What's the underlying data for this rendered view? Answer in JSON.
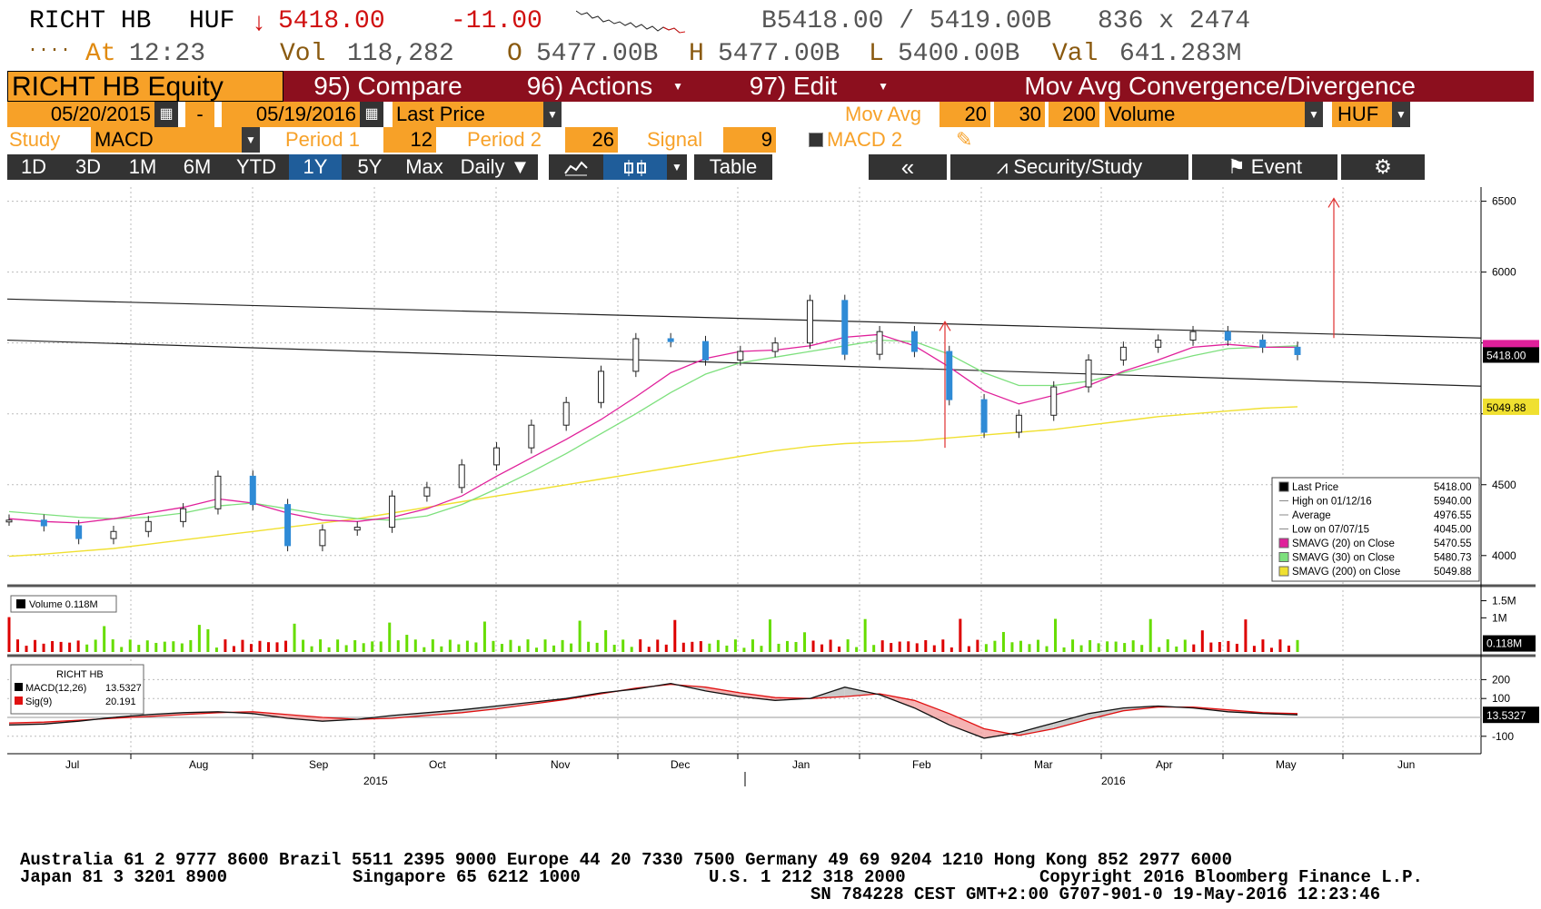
{
  "quote": {
    "ticker": "RICHT HB",
    "currency": "HUF",
    "arrow": "↓",
    "last": "5418.00",
    "change": "-11.00",
    "bid_ask": "B5418.00 / 5419.00B",
    "size": "836 x 2474",
    "dots": "....",
    "time_label": "At",
    "time": "12:23",
    "vol_label": "Vol",
    "vol": "118,282",
    "open_label": "O",
    "open": "5477.00B",
    "high_label": "H",
    "high": "5477.00B",
    "low_label": "L",
    "low": "5400.00B",
    "val_label": "Val",
    "val": "641.283M"
  },
  "menu": {
    "security": "RICHT HB Equity",
    "compare": "95) Compare",
    "actions": "96) Actions",
    "edit": "97) Edit",
    "title": "Mov Avg Convergence/Divergence"
  },
  "params": {
    "start_date": "05/20/2015",
    "dash": "-",
    "end_date": "05/19/2016",
    "field": "Last Price",
    "mov_avg_label": "Mov Avg",
    "ma1": "20",
    "ma2": "30",
    "ma3": "200",
    "lower": "Volume",
    "ccy": "HUF",
    "study_label": "Study",
    "study": "MACD",
    "period1_label": "Period 1",
    "period1": "12",
    "period2_label": "Period 2",
    "period2": "26",
    "signal_label": "Signal",
    "signal": "9",
    "macd2": "MACD 2"
  },
  "toolbar": {
    "ranges": [
      "1D",
      "3D",
      "1M",
      "6M",
      "YTD",
      "1Y",
      "5Y",
      "Max"
    ],
    "active_range": "1Y",
    "frequency": "Daily",
    "table": "Table",
    "back": "«",
    "security_study": "Security/Study",
    "event": "Event"
  },
  "colors": {
    "orange": "#f7a128",
    "maroon": "#8c0f1e",
    "up": "#ffffff",
    "down": "#2f8bd6",
    "sma20": "#e0209a",
    "sma30": "#7de07d",
    "sma200": "#f0e030",
    "vol_up": "#66dd00",
    "vol_down": "#dd0000",
    "annot": "#e03030"
  },
  "price_panel": {
    "y_ticks": [
      "6500",
      "6000",
      "4500",
      "4000"
    ],
    "last_tag": "5418.00",
    "sma_tag": "5470.55",
    "sma200_tag": "5049.88",
    "legend": [
      {
        "label": "Last Price",
        "value": "5418.00",
        "swatch": "#000000"
      },
      {
        "label": "High on 01/12/16",
        "value": "5940.00",
        "swatch": "none"
      },
      {
        "label": "Average",
        "value": "4976.55",
        "swatch": "none"
      },
      {
        "label": "Low on 07/07/15",
        "value": "4045.00",
        "swatch": "none"
      },
      {
        "label": "SMAVG (20) on Close",
        "value": "5470.55",
        "swatch": "#e0209a"
      },
      {
        "label": "SMAVG (30) on Close",
        "value": "5480.73",
        "swatch": "#7de07d"
      },
      {
        "label": "SMAVG (200) on Close",
        "value": "5049.88",
        "swatch": "#f0e030"
      }
    ]
  },
  "volume_panel": {
    "legend": "Volume 0.118M",
    "y_ticks": [
      "1.5M",
      "1M"
    ],
    "tag": "0.118M"
  },
  "macd_panel": {
    "title": "RICHT HB",
    "macd_label": "MACD(12,26)",
    "macd_value": "13.5327",
    "sig_label": "Sig(9)",
    "sig_value": "20.191",
    "y_ticks": [
      "200",
      "100",
      "-100"
    ],
    "tag": "13.5327"
  },
  "x_axis": {
    "months": [
      "Jul",
      "Aug",
      "Sep",
      "Oct",
      "Nov",
      "Dec",
      "Jan",
      "Feb",
      "Mar",
      "Apr",
      "May",
      "Jun"
    ],
    "year_left": "2015",
    "year_right": "2016"
  },
  "footer": {
    "line1": "Australia 61 2 9777 8600 Brazil 5511 2395 9000 Europe 44 20 7330 7500 Germany 49 69 9204 1210 Hong Kong 852 2977 6000",
    "line2a": "Japan 81 3 3201 8900",
    "line2b": "Singapore 65 6212 1000",
    "line2c": "U.S. 1 212 318 2000",
    "line2d": "Copyright 2016 Bloomberg Finance L.P.",
    "line3": "SN 784228 CEST GMT+2:00 G707-901-0 19-May-2016 12:23:46"
  },
  "chart_data": {
    "type": "line",
    "title": "RICHT HB",
    "x_labels": [
      "Jul",
      "Aug",
      "Sep",
      "Oct",
      "Nov",
      "Dec",
      "Jan",
      "Feb",
      "Mar",
      "Apr",
      "May",
      "Jun"
    ],
    "series": [
      {
        "name": "Last Price",
        "values": [
          4250,
          4210,
          4120,
          4170,
          4240,
          4330,
          4560,
          4360,
          4070,
          4180,
          4200,
          4420,
          4480,
          4640,
          4760,
          4920,
          5080,
          5300,
          5530,
          5510,
          5380,
          5440,
          5500,
          5800,
          5420,
          5580,
          5440,
          5100,
          4870,
          4990,
          5190,
          5380,
          5470,
          5520,
          5580,
          5520,
          5470,
          5418
        ]
      },
      {
        "name": "SMAVG (20) on Close",
        "values": [
          4260,
          4240,
          4230,
          4260,
          4300,
          4340,
          4400,
          4370,
          4300,
          4250,
          4240,
          4270,
          4330,
          4420,
          4560,
          4690,
          4820,
          4960,
          5120,
          5290,
          5390,
          5440,
          5450,
          5480,
          5540,
          5560,
          5480,
          5330,
          5160,
          5070,
          5130,
          5200,
          5300,
          5380,
          5470,
          5490,
          5470,
          5470
        ]
      },
      {
        "name": "SMAVG (30) on Close",
        "values": [
          4310,
          4290,
          4270,
          4260,
          4270,
          4300,
          4350,
          4370,
          4330,
          4290,
          4260,
          4250,
          4280,
          4360,
          4470,
          4590,
          4720,
          4860,
          5000,
          5150,
          5280,
          5360,
          5400,
          5440,
          5480,
          5520,
          5510,
          5420,
          5290,
          5200,
          5200,
          5230,
          5290,
          5350,
          5410,
          5460,
          5470,
          5480
        ]
      },
      {
        "name": "SMAVG (200) on Close",
        "values": [
          3995,
          4010,
          4030,
          4050,
          4080,
          4110,
          4140,
          4170,
          4200,
          4230,
          4260,
          4300,
          4340,
          4380,
          4420,
          4460,
          4500,
          4540,
          4580,
          4620,
          4660,
          4700,
          4740,
          4770,
          4790,
          4800,
          4810,
          4830,
          4850,
          4870,
          4890,
          4920,
          4950,
          4980,
          5000,
          5020,
          5040,
          5050
        ]
      },
      {
        "name": "MACD(12,26)",
        "values": [
          -40,
          -35,
          -20,
          0,
          15,
          25,
          30,
          20,
          -5,
          -20,
          -10,
          10,
          25,
          40,
          60,
          80,
          100,
          130,
          150,
          180,
          140,
          110,
          90,
          100,
          160,
          120,
          50,
          -40,
          -110,
          -80,
          -30,
          20,
          50,
          60,
          50,
          30,
          20,
          13.5
        ]
      },
      {
        "name": "Sig(9)",
        "values": [
          -30,
          -25,
          -15,
          -5,
          5,
          15,
          25,
          30,
          15,
          0,
          -10,
          -5,
          10,
          25,
          45,
          70,
          95,
          125,
          155,
          175,
          160,
          130,
          105,
          100,
          110,
          125,
          90,
          20,
          -60,
          -95,
          -60,
          -10,
          35,
          55,
          55,
          40,
          25,
          20.2
        ]
      }
    ],
    "y_label": "",
    "ylim": [
      3800,
      6600
    ]
  }
}
